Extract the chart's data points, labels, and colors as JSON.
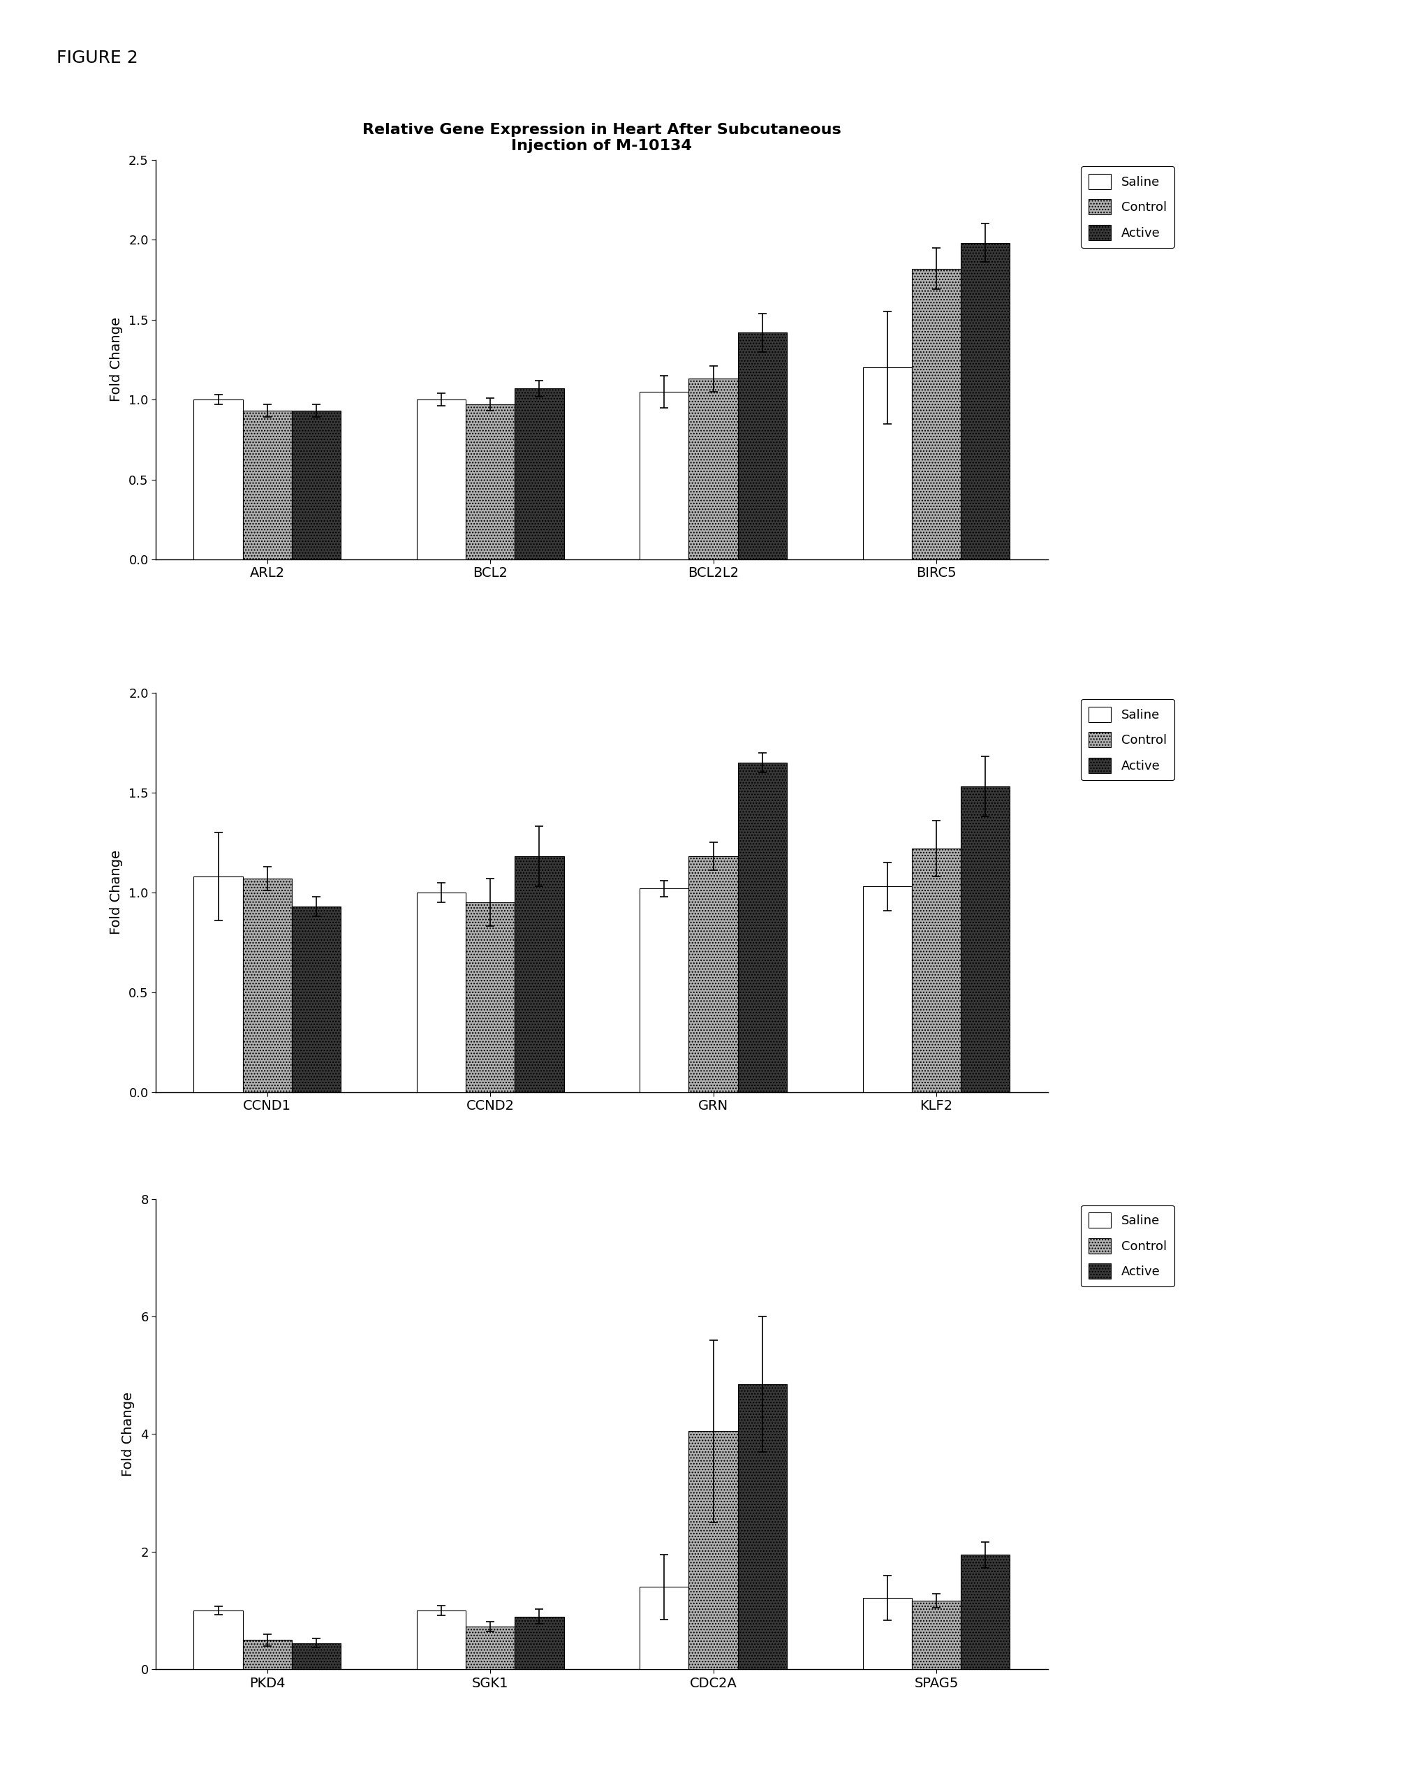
{
  "title": "Relative Gene Expression in Heart After Subcutaneous\nInjection of M-10134",
  "figure_label": "FIGURE 2",
  "charts": [
    {
      "categories": [
        "ARL2",
        "BCL2",
        "BCL2L2",
        "BIRC5"
      ],
      "ylim": [
        0.0,
        2.5
      ],
      "yticks": [
        0.0,
        0.5,
        1.0,
        1.5,
        2.0,
        2.5
      ],
      "ytick_labels": [
        "0.0",
        "0.5",
        "1.0",
        "1.5",
        "2.0",
        "2.5"
      ],
      "ylabel": "Fold Change",
      "saline": [
        1.0,
        1.0,
        1.05,
        1.2
      ],
      "control": [
        0.93,
        0.97,
        1.13,
        1.82
      ],
      "active": [
        0.93,
        1.07,
        1.42,
        1.98
      ],
      "saline_err": [
        0.03,
        0.04,
        0.1,
        0.35
      ],
      "control_err": [
        0.04,
        0.04,
        0.08,
        0.13
      ],
      "active_err": [
        0.04,
        0.05,
        0.12,
        0.12
      ]
    },
    {
      "categories": [
        "CCND1",
        "CCND2",
        "GRN",
        "KLF2"
      ],
      "ylim": [
        0.0,
        2.0
      ],
      "yticks": [
        0.0,
        0.5,
        1.0,
        1.5,
        2.0
      ],
      "ytick_labels": [
        "0.0",
        "0.5",
        "1.0",
        "1.5",
        "2.0"
      ],
      "ylabel": "Fold Change",
      "saline": [
        1.08,
        1.0,
        1.02,
        1.03
      ],
      "control": [
        1.07,
        0.95,
        1.18,
        1.22
      ],
      "active": [
        0.93,
        1.18,
        1.65,
        1.53
      ],
      "saline_err": [
        0.22,
        0.05,
        0.04,
        0.12
      ],
      "control_err": [
        0.06,
        0.12,
        0.07,
        0.14
      ],
      "active_err": [
        0.05,
        0.15,
        0.05,
        0.15
      ]
    },
    {
      "categories": [
        "PKD4",
        "SGK1",
        "CDC2A",
        "SPAG5"
      ],
      "ylim": [
        0,
        8
      ],
      "yticks": [
        0,
        2,
        4,
        6,
        8
      ],
      "ytick_labels": [
        "0",
        "2",
        "4",
        "6",
        "8"
      ],
      "ylabel": "Fold Change",
      "saline": [
        1.0,
        1.0,
        1.4,
        1.22
      ],
      "control": [
        0.5,
        0.73,
        4.05,
        1.17
      ],
      "active": [
        0.45,
        0.9,
        4.85,
        1.95
      ],
      "saline_err": [
        0.07,
        0.08,
        0.55,
        0.38
      ],
      "control_err": [
        0.1,
        0.08,
        1.55,
        0.12
      ],
      "active_err": [
        0.08,
        0.12,
        1.15,
        0.22
      ]
    }
  ],
  "bar_color_saline": "#ffffff",
  "bar_color_control": "#b0b0b0",
  "bar_color_active": "#383838",
  "hatch_saline": "",
  "hatch_control": "....",
  "hatch_active": "....",
  "legend_labels": [
    "Saline",
    "Control",
    "Active"
  ],
  "background_color": "#ffffff",
  "bar_width": 0.22
}
